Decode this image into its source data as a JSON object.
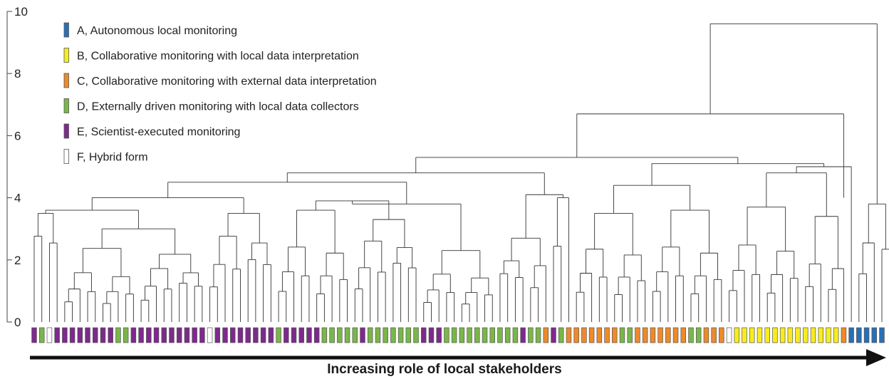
{
  "chart_data": {
    "type": "dendrogram",
    "ylim": [
      0,
      10
    ],
    "yticks": [
      "0",
      "2",
      "4",
      "6",
      "8",
      "10"
    ],
    "xlabel": "Increasing role of local stakeholders",
    "legend": {
      "position": "top-left",
      "entries": [
        {
          "key": "A",
          "label": "A, Autonomous local monitoring",
          "color": "#2a6fb5"
        },
        {
          "key": "B",
          "label": "B, Collaborative monitoring with local data interpretation",
          "color": "#f7ec1f"
        },
        {
          "key": "C",
          "label": "C, Collaborative monitoring with external data interpretation",
          "color": "#ee8a2a"
        },
        {
          "key": "D",
          "label": "D, Externally driven monitoring with local data collectors",
          "color": "#7ab648"
        },
        {
          "key": "E",
          "label": "E, Scientist-executed monitoring",
          "color": "#7d2a8c"
        },
        {
          "key": "F",
          "label": "F, Hybrid form",
          "color": "#ffffff"
        }
      ]
    },
    "leaf_categories": [
      "E",
      "D",
      "F",
      "E",
      "E",
      "E",
      "E",
      "E",
      "E",
      "E",
      "E",
      "D",
      "D",
      "E",
      "E",
      "E",
      "E",
      "E",
      "E",
      "E",
      "E",
      "E",
      "E",
      "F",
      "E",
      "E",
      "E",
      "E",
      "E",
      "E",
      "E",
      "E",
      "D",
      "E",
      "E",
      "E",
      "E",
      "E",
      "D",
      "D",
      "D",
      "D",
      "D",
      "E",
      "D",
      "D",
      "D",
      "D",
      "D",
      "D",
      "D",
      "E",
      "E",
      "E",
      "D",
      "D",
      "D",
      "D",
      "D",
      "D",
      "D",
      "D",
      "D",
      "D",
      "E",
      "D",
      "D",
      "C",
      "E",
      "D",
      "C",
      "C",
      "C",
      "C",
      "C",
      "C",
      "C",
      "D",
      "D",
      "C",
      "C",
      "C",
      "C",
      "C",
      "C",
      "C",
      "D",
      "D",
      "C",
      "C",
      "C",
      "F",
      "B",
      "B",
      "B",
      "B",
      "B",
      "B",
      "B",
      "B",
      "B",
      "B",
      "B",
      "B",
      "B",
      "B",
      "C",
      "A",
      "A",
      "A",
      "A",
      "A"
    ],
    "merges": [
      [
        9,
        10,
        0.62
      ],
      [
        7,
        8,
        0.0
      ],
      [
        13,
        14,
        1.0
      ],
      [
        15,
        16,
        1.0
      ],
      [
        20,
        21,
        1.5
      ],
      [
        22,
        23,
        2.1
      ],
      [
        24,
        25,
        2.5
      ],
      [
        5,
        6,
        0.0
      ],
      [
        17,
        18,
        0.0
      ],
      [
        18,
        19,
        0.0
      ],
      [
        0,
        1,
        2.3
      ],
      [
        2,
        3,
        1.6
      ],
      [
        44,
        45,
        1.0
      ],
      [
        52,
        53,
        0.95
      ],
      [
        55,
        56,
        1.3
      ],
      [
        57,
        58,
        1.1
      ],
      [
        62,
        63,
        0.62
      ],
      [
        70,
        71,
        1.0
      ],
      [
        85,
        86,
        1.4
      ],
      [
        102,
        103,
        1.5
      ],
      [
        108,
        109,
        0.0
      ],
      [
        110,
        111,
        0.0
      ]
    ],
    "levels": {
      "root": 9.6,
      "upper": [
        6.7,
        5.3,
        5.1,
        4.8,
        4.5,
        4.0,
        3.9,
        3.6
      ]
    }
  }
}
